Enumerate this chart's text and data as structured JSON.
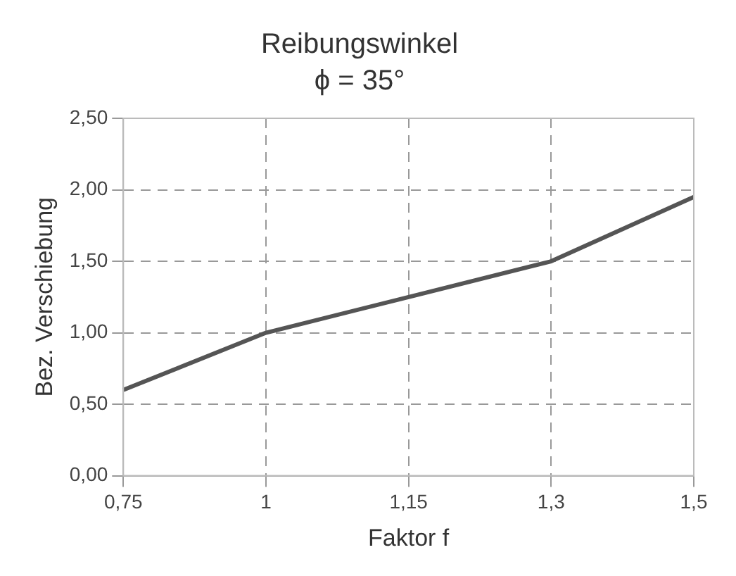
{
  "chart_data": {
    "type": "line",
    "title": "Reibungswinkel",
    "subtitle": "ϕ = 35°",
    "xlabel": "Faktor f",
    "ylabel": "Bez. Verschiebung",
    "categories": [
      "0,75",
      "1",
      "1,15",
      "1,3",
      "1,5"
    ],
    "series": [
      {
        "color": "#555555",
        "values": [
          0.6,
          1.0,
          1.25,
          1.5,
          1.95
        ]
      }
    ],
    "ylim": [
      0,
      2.5
    ],
    "yticks": [
      {
        "value": 0,
        "label": "0,00"
      },
      {
        "value": 0.5,
        "label": "0,50"
      },
      {
        "value": 1,
        "label": "1,00"
      },
      {
        "value": 1.5,
        "label": "1,50"
      },
      {
        "value": 2,
        "label": "2,00"
      },
      {
        "value": 2.5,
        "label": "2,50"
      }
    ],
    "grid": true,
    "line_style": "solid",
    "marker": "none",
    "legend": false
  }
}
